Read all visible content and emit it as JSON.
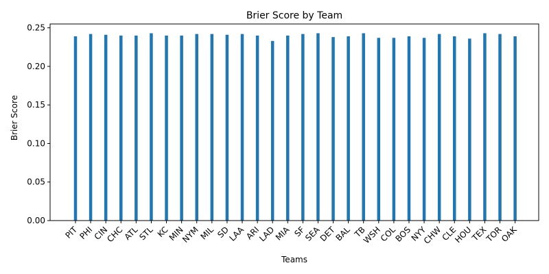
{
  "chart_data": {
    "type": "bar",
    "title": "Brier Score by Team",
    "xlabel": "Teams",
    "ylabel": "Brier Score",
    "ylim": [
      0,
      0.255
    ],
    "yticks": [
      "0.00",
      "0.05",
      "0.10",
      "0.15",
      "0.20",
      "0.25"
    ],
    "ytick_values": [
      0,
      0.05,
      0.1,
      0.15,
      0.2,
      0.25
    ],
    "categories": [
      "PIT",
      "PHI",
      "CIN",
      "CHC",
      "ATL",
      "STL",
      "KC",
      "MIN",
      "NYM",
      "MIL",
      "SD",
      "LAA",
      "ARI",
      "LAD",
      "MIA",
      "SF",
      "SEA",
      "DET",
      "BAL",
      "TB",
      "WSH",
      "COL",
      "BOS",
      "NYY",
      "CHW",
      "CLE",
      "HOU",
      "TEX",
      "TOR",
      "OAK"
    ],
    "values": [
      0.239,
      0.242,
      0.241,
      0.24,
      0.24,
      0.243,
      0.24,
      0.24,
      0.242,
      0.242,
      0.241,
      0.242,
      0.24,
      0.233,
      0.24,
      0.242,
      0.243,
      0.238,
      0.239,
      0.243,
      0.237,
      0.237,
      0.239,
      0.237,
      0.242,
      0.239,
      0.236,
      0.243,
      0.242,
      0.239
    ],
    "bar_color": "#1f77b4",
    "grid": false,
    "legend": "none"
  }
}
